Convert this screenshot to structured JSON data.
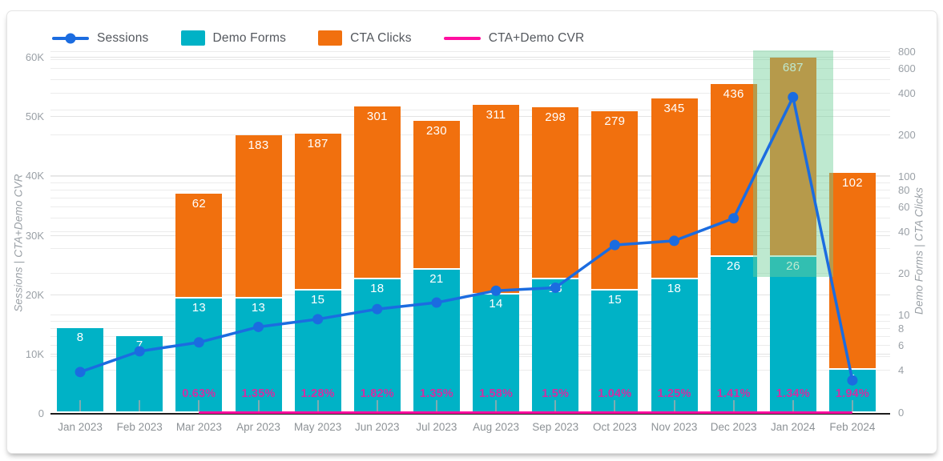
{
  "legend": [
    {
      "label": "Sessions",
      "marker": "line-dot",
      "color": "#1b6ce0"
    },
    {
      "label": "Demo Forms",
      "marker": "swatch",
      "color": "#00b2c6"
    },
    {
      "label": "CTA Clicks",
      "marker": "swatch",
      "color": "#f1700e"
    },
    {
      "label": "CTA+Demo CVR",
      "marker": "line",
      "color": "#ff0fa0"
    }
  ],
  "axes": {
    "left": {
      "title": "Sessions | CTA+Demo CVR",
      "ticks": [
        {
          "label": "60K",
          "value": 60000
        },
        {
          "label": "50K",
          "value": 50000
        },
        {
          "label": "40K",
          "value": 40000
        },
        {
          "label": "30K",
          "value": 30000
        },
        {
          "label": "20K",
          "value": 20000
        },
        {
          "label": "10K",
          "value": 10000
        },
        {
          "label": "0",
          "value": 0
        }
      ],
      "max": 60000,
      "scale": "linear"
    },
    "right": {
      "title": "Demo Forms | CTA Clicks",
      "ticks": [
        800,
        600,
        400,
        200,
        100,
        80,
        60,
        40,
        20,
        10,
        8,
        6,
        4
      ],
      "zero_label": "0",
      "scale": "log"
    }
  },
  "chart_data": {
    "type": "combo-stacked-bar-line",
    "categories": [
      "Jan 2023",
      "Feb 2023",
      "Mar 2023",
      "Apr 2023",
      "May 2023",
      "Jun 2023",
      "Jul 2023",
      "Aug 2023",
      "Sep 2023",
      "Oct 2023",
      "Nov 2023",
      "Dec 2023",
      "Jan 2024",
      "Feb 2024"
    ],
    "series": [
      {
        "name": "Sessions",
        "type": "line",
        "axis": "left",
        "color": "#1b6ce0",
        "values": [
          6900,
          10400,
          11900,
          14500,
          15800,
          17500,
          18600,
          20600,
          21100,
          28300,
          29000,
          32800,
          53200,
          5500
        ]
      },
      {
        "name": "Demo Forms",
        "type": "bar",
        "axis": "right",
        "color": "#00b2c6",
        "values": [
          8,
          7,
          13,
          13,
          15,
          18,
          21,
          14,
          18,
          15,
          18,
          26,
          26,
          4
        ]
      },
      {
        "name": "CTA Clicks",
        "type": "bar",
        "stacked_on": "Demo Forms",
        "axis": "right",
        "color": "#f1700e",
        "values": [
          null,
          null,
          62,
          183,
          187,
          301,
          230,
          311,
          298,
          279,
          345,
          436,
          687,
          102
        ]
      },
      {
        "name": "CTA+Demo CVR",
        "type": "line",
        "axis": "left",
        "color": "#ff0fa0",
        "label_color": "#cf2fa4",
        "labels": [
          null,
          null,
          "0.63%",
          "1.35%",
          "1.28%",
          "1.82%",
          "1.35%",
          "1.58%",
          "1.5%",
          "1.04%",
          "1.25%",
          "1.41%",
          "1.34%",
          "1.94%"
        ]
      }
    ],
    "highlight": {
      "category": "Jan 2024",
      "color": "rgba(111,207,151,0.45)"
    },
    "grid": "on",
    "legend_position": "top"
  }
}
